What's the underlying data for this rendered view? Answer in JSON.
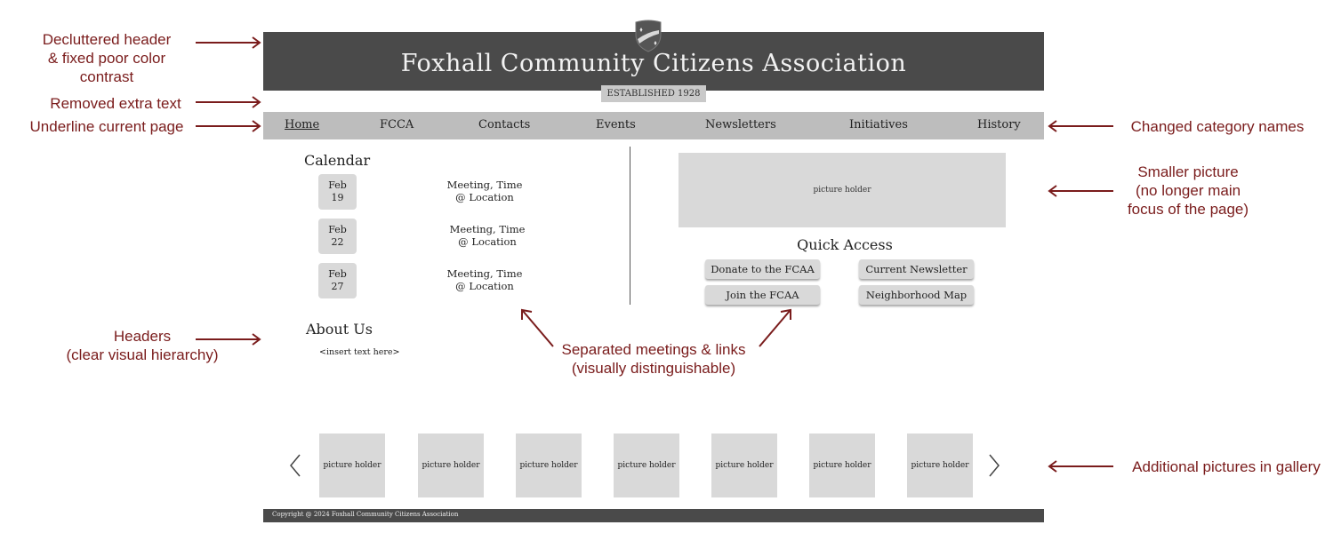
{
  "annotations": {
    "header": "Decluttered header\n& fixed poor color contrast",
    "header_line1": "Decluttered header",
    "header_line2": "& fixed poor color contrast",
    "removed_text": "Removed extra text",
    "underline": "Underline current page",
    "category": "Changed category names",
    "smaller_line1": "Smaller picture",
    "smaller_line2": "(no longer main",
    "smaller_line3": "focus of the page)",
    "headers_line1": "Headers",
    "headers_line2": "(clear visual hierarchy)",
    "separated_line1": "Separated meetings & links",
    "separated_line2": "(visually distinguishable)",
    "gallery": "Additional pictures in gallery"
  },
  "header": {
    "title": "Foxhall Community Citizens Association",
    "established": "ESTABLISHED 1928"
  },
  "nav": [
    {
      "label": "Home",
      "current": true
    },
    {
      "label": "FCCA"
    },
    {
      "label": "Contacts"
    },
    {
      "label": "Events"
    },
    {
      "label": "Newsletters"
    },
    {
      "label": "Initiatives"
    },
    {
      "label": "History"
    }
  ],
  "calendar": {
    "title": "Calendar",
    "events": [
      {
        "month": "Feb",
        "day": "19",
        "line1": "Meeting, Time",
        "line2": "@ Location"
      },
      {
        "month": "Feb",
        "day": "22",
        "line1": "Meeting, Time",
        "line2": "@ Location"
      },
      {
        "month": "Feb",
        "day": "27",
        "line1": "Meeting, Time",
        "line2": "@ Location"
      }
    ]
  },
  "about": {
    "title": "About Us",
    "text": "<insert text here>"
  },
  "hero": {
    "placeholder": "picture holder"
  },
  "quick_access": {
    "title": "Quick Access",
    "buttons": [
      "Donate to the FCAA",
      "Current Newsletter",
      "Join the FCAA",
      "Neighborhood Map"
    ]
  },
  "gallery": {
    "items": [
      "picture holder",
      "picture holder",
      "picture holder",
      "picture holder",
      "picture holder",
      "picture holder",
      "picture holder"
    ]
  },
  "footer": {
    "text": "Copyright @ 2024 Foxhall Community Citizens Association"
  },
  "colors": {
    "annotation": "#7a1c1c",
    "header_bg": "#4a4a4a",
    "nav_bg": "#bdbdbd",
    "placeholder": "#d9d9d9"
  }
}
